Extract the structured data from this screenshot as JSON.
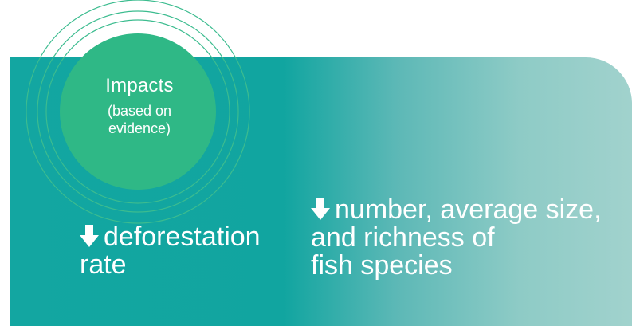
{
  "colors": {
    "panel_gradient_start": "#13a6a1",
    "panel_gradient_end": "#a1d2cd",
    "circle_fill": "#2fb886",
    "ring_stroke": "#3cbc8f",
    "text": "#ffffff"
  },
  "circle": {
    "title": "Impacts",
    "subtitle": "(based on\nevidence)"
  },
  "impacts": [
    {
      "icon": "down-arrow-icon",
      "lines": [
        "deforestation",
        "rate"
      ]
    },
    {
      "icon": "down-arrow-icon",
      "lines": [
        "number, average size,",
        "and richness of",
        "fish species"
      ]
    }
  ]
}
